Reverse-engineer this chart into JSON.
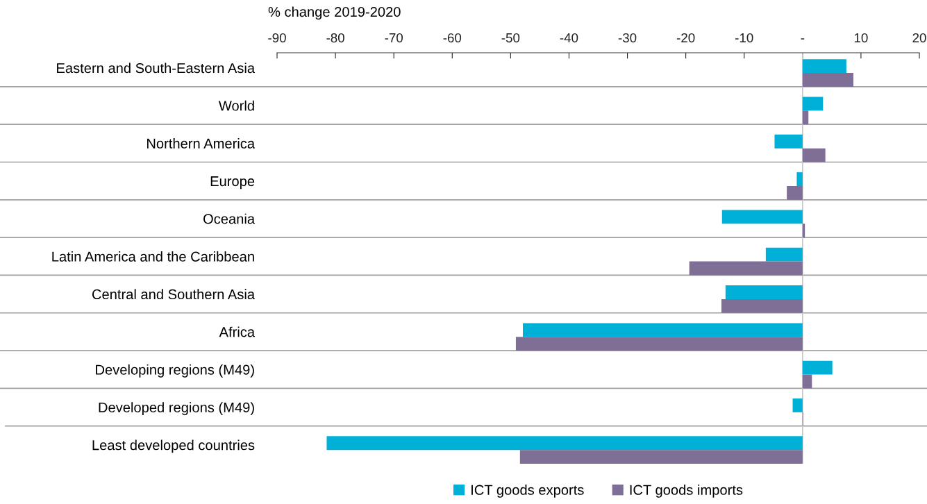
{
  "chart_data": {
    "type": "bar",
    "orientation": "horizontal",
    "xlabel": "% change 2019-2020",
    "categories": [
      "Eastern and South-Eastern Asia",
      "World",
      "Northern America",
      "Europe",
      "Oceania",
      "Latin America and the Caribbean",
      "Central and Southern Asia",
      "Africa",
      "Developing regions (M49)",
      "Developed regions (M49)",
      "Least developed countries"
    ],
    "series": [
      {
        "name": "ICT goods exports",
        "color": "#00b0d6",
        "values": [
          7.5,
          3.5,
          -4.8,
          -1.0,
          -13.8,
          -6.3,
          -13.2,
          -47.9,
          5.1,
          -1.7,
          -81.5
        ]
      },
      {
        "name": "ICT goods imports",
        "color": "#7f6e96",
        "values": [
          8.7,
          1.0,
          3.9,
          -2.7,
          0.4,
          -19.4,
          -13.9,
          -49.1,
          1.6,
          0.1,
          -48.4
        ]
      }
    ],
    "xlim": [
      -90,
      20
    ],
    "xticks": [
      -90,
      -80,
      -70,
      -60,
      -50,
      -40,
      -30,
      -20,
      -10,
      {
        "value": 0,
        "label": "-"
      },
      10,
      20
    ],
    "grid": "y",
    "legend": "bottom"
  }
}
